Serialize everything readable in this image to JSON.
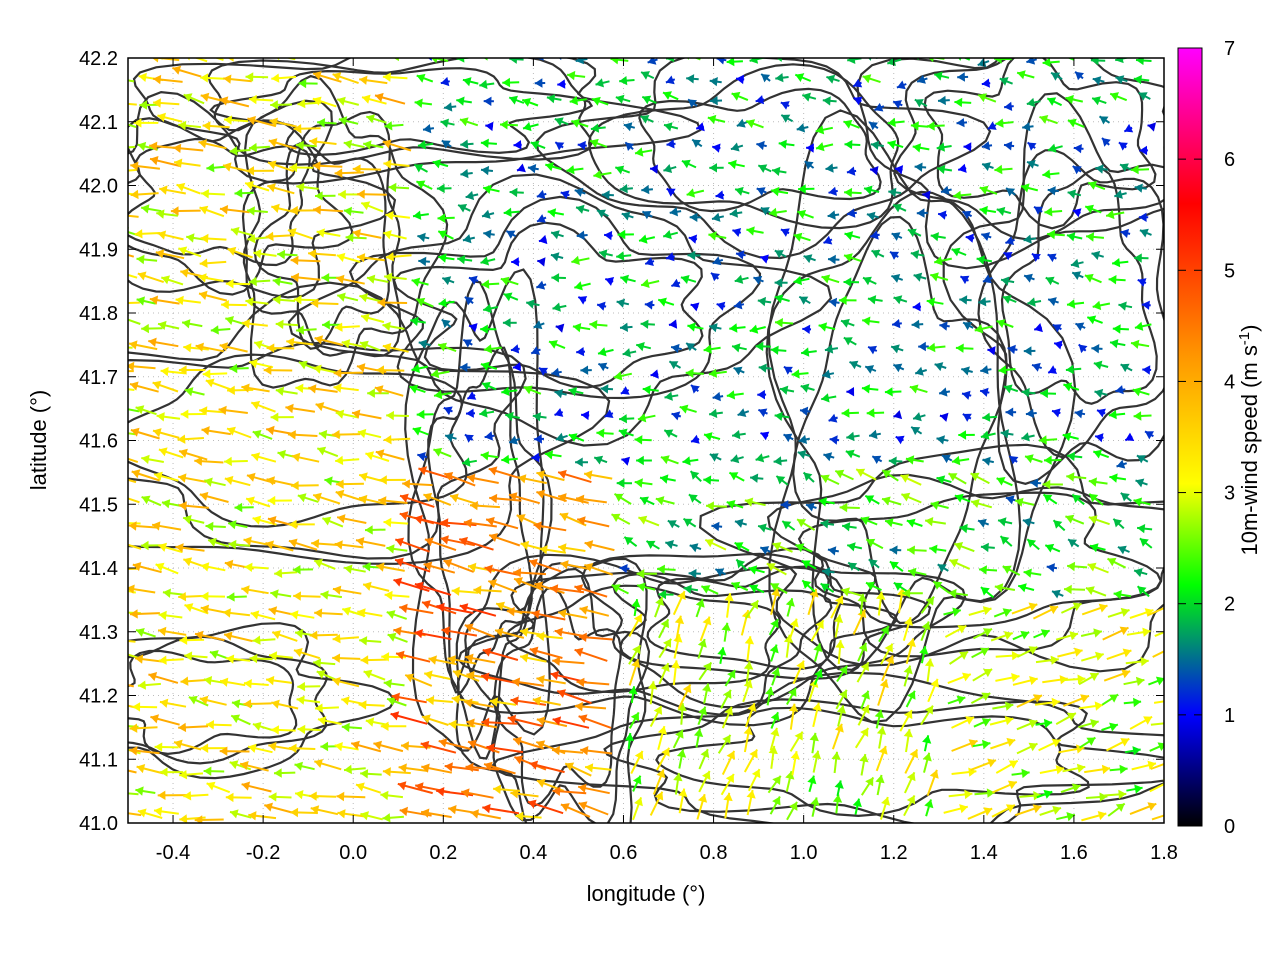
{
  "chart_data": {
    "type": "vector_field",
    "xlabel": "longitude (°)",
    "ylabel": "latitude (°)",
    "xlim": [
      -0.5,
      1.8
    ],
    "ylim": [
      41.0,
      42.2
    ],
    "xticks": [
      "-0.4",
      "-0.2",
      "0.0",
      "0.2",
      "0.4",
      "0.6",
      "0.8",
      "1.0",
      "1.2",
      "1.4",
      "1.6",
      "1.8"
    ],
    "yticks": [
      "41.0",
      "41.1",
      "41.2",
      "41.3",
      "41.4",
      "41.5",
      "41.6",
      "41.7",
      "41.8",
      "41.9",
      "42.0",
      "42.1",
      "42.2"
    ],
    "grid": true,
    "colorbar": {
      "label": "10m-wind speed (m s⁻¹)",
      "label_main": "10m-wind speed (m s",
      "label_sup": "-1",
      "label_close": ")",
      "range": [
        0,
        7
      ],
      "ticks": [
        "0",
        "1",
        "2",
        "3",
        "4",
        "5",
        "6",
        "7"
      ],
      "palette": [
        "#000000",
        "#0000ff",
        "#00ff00",
        "#ffff00",
        "#ff8800",
        "#ff0000",
        "#ff00ff"
      ]
    },
    "wind_regions": [
      {
        "lon": [
          -0.5,
          0.15
        ],
        "lat": [
          41.0,
          42.2
        ],
        "u": -3.5,
        "v": 0.5
      },
      {
        "lon": [
          0.15,
          0.6
        ],
        "lat": [
          41.0,
          41.55
        ],
        "u": -4.5,
        "v": 1.0
      },
      {
        "lon": [
          0.6,
          1.3
        ],
        "lat": [
          41.0,
          41.35
        ],
        "u": 1.0,
        "v": 3.0
      },
      {
        "lon": [
          1.3,
          1.8
        ],
        "lat": [
          41.0,
          41.35
        ],
        "u": 3.0,
        "v": 1.0
      },
      {
        "lon": [
          0.25,
          1.8
        ],
        "lat": [
          41.55,
          42.2
        ],
        "u": -1.8,
        "v": 0.2
      },
      {
        "lon": [
          0.6,
          1.8
        ],
        "lat": [
          41.35,
          41.55
        ],
        "u": -2.2,
        "v": 0.8
      }
    ]
  }
}
